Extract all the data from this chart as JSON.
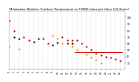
{
  "title": "Milwaukee Weather Outdoor Temperature vs THSW Index per Hour (24 Hours)",
  "title_fontsize": 2.8,
  "background_color": "#ffffff",
  "xlim": [
    0,
    24
  ],
  "ylim": [
    20,
    110
  ],
  "yticks": [
    30,
    40,
    50,
    60,
    70,
    80,
    90,
    100
  ],
  "ytick_labels": [
    "30",
    "40",
    "50",
    "60",
    "70",
    "80",
    "90",
    "100"
  ],
  "xticks": [
    0,
    1,
    2,
    3,
    4,
    5,
    6,
    7,
    8,
    9,
    10,
    11,
    12,
    13,
    14,
    15,
    16,
    17,
    18,
    19,
    20,
    21,
    22,
    23
  ],
  "grid_color": "#cccccc",
  "temp_color": "#cc0000",
  "thsw_color": "#ff8800",
  "black_color": "#000000",
  "line_color": "#cc0000",
  "temp_data": [
    [
      0,
      95
    ],
    [
      1,
      80
    ],
    [
      3,
      70
    ],
    [
      4,
      65
    ],
    [
      7,
      67
    ],
    [
      8,
      60
    ],
    [
      11,
      70
    ],
    [
      12,
      65
    ],
    [
      13,
      65
    ],
    [
      14,
      65
    ],
    [
      15,
      60
    ],
    [
      16,
      55
    ],
    [
      17,
      50
    ],
    [
      18,
      45
    ],
    [
      19,
      42
    ],
    [
      20,
      40
    ],
    [
      21,
      38
    ],
    [
      22,
      36
    ],
    [
      23,
      34
    ]
  ],
  "thsw_data": [
    [
      0,
      55
    ],
    [
      2,
      52
    ],
    [
      9,
      72
    ],
    [
      10,
      68
    ],
    [
      11,
      60
    ],
    [
      13,
      55
    ],
    [
      14,
      50
    ],
    [
      15,
      47
    ],
    [
      16,
      43
    ],
    [
      17,
      38
    ],
    [
      18,
      35
    ],
    [
      19,
      30
    ]
  ],
  "black_data": [
    [
      1,
      70
    ],
    [
      2,
      68
    ],
    [
      5,
      63
    ],
    [
      6,
      67
    ],
    [
      9,
      58
    ],
    [
      10,
      62
    ],
    [
      12,
      60
    ],
    [
      13,
      60
    ]
  ],
  "hline_y": 47,
  "hline_xstart": 13.5,
  "hline_xend": 23.5,
  "marker_size": 2.5,
  "tick_fontsize": 2.2
}
